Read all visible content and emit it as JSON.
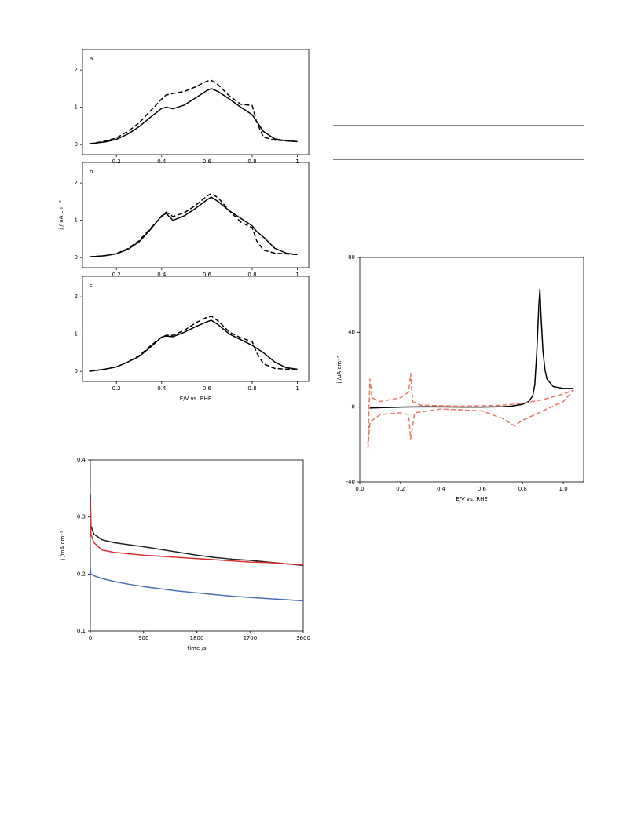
{
  "chart_data": [
    {
      "type": "line",
      "label": "a",
      "xlim": [
        0.05,
        1.05
      ],
      "ylim": [
        -0.27,
        2.55
      ],
      "xticks": [
        0.2,
        0.4,
        0.6,
        0.8,
        1.0
      ],
      "yticks": [
        0,
        1,
        2
      ],
      "series": [
        {
          "color": "#000000",
          "dash": false,
          "x": [
            0.08,
            0.15,
            0.2,
            0.25,
            0.3,
            0.35,
            0.4,
            0.42,
            0.45,
            0.5,
            0.55,
            0.6,
            0.62,
            0.65,
            0.7,
            0.75,
            0.8,
            0.82,
            0.85,
            0.9,
            0.95,
            1.0
          ],
          "values": [
            0.02,
            0.07,
            0.14,
            0.28,
            0.48,
            0.73,
            0.97,
            1.0,
            0.96,
            1.06,
            1.25,
            1.45,
            1.5,
            1.42,
            1.22,
            1.0,
            0.8,
            0.62,
            0.35,
            0.15,
            0.1,
            0.08
          ]
        },
        {
          "color": "#000000",
          "dash": true,
          "x": [
            0.08,
            0.15,
            0.2,
            0.25,
            0.3,
            0.35,
            0.4,
            0.42,
            0.45,
            0.5,
            0.55,
            0.6,
            0.62,
            0.65,
            0.7,
            0.75,
            0.8,
            0.82,
            0.85,
            0.9,
            0.95,
            1.0
          ],
          "values": [
            0.02,
            0.09,
            0.18,
            0.35,
            0.58,
            0.9,
            1.22,
            1.33,
            1.37,
            1.42,
            1.55,
            1.7,
            1.72,
            1.6,
            1.3,
            1.08,
            1.05,
            0.6,
            0.2,
            0.12,
            0.1,
            0.08
          ]
        }
      ]
    },
    {
      "type": "line",
      "label": "b",
      "y_label": "j /mA cm⁻²",
      "xlim": [
        0.05,
        1.05
      ],
      "ylim": [
        -0.27,
        2.55
      ],
      "xticks": [
        0.2,
        0.4,
        0.6,
        0.8,
        1.0
      ],
      "yticks": [
        0,
        1,
        2
      ],
      "series": [
        {
          "color": "#000000",
          "dash": false,
          "x": [
            0.08,
            0.15,
            0.2,
            0.25,
            0.3,
            0.35,
            0.4,
            0.42,
            0.45,
            0.5,
            0.55,
            0.6,
            0.62,
            0.65,
            0.7,
            0.75,
            0.8,
            0.82,
            0.85,
            0.9,
            0.95,
            1.0
          ],
          "values": [
            0.02,
            0.05,
            0.1,
            0.22,
            0.42,
            0.75,
            1.12,
            1.18,
            1.0,
            1.12,
            1.32,
            1.55,
            1.62,
            1.5,
            1.25,
            1.05,
            0.85,
            0.7,
            0.55,
            0.25,
            0.12,
            0.08
          ]
        },
        {
          "color": "#000000",
          "dash": true,
          "x": [
            0.08,
            0.15,
            0.2,
            0.25,
            0.3,
            0.35,
            0.4,
            0.42,
            0.45,
            0.5,
            0.55,
            0.6,
            0.62,
            0.65,
            0.7,
            0.75,
            0.8,
            0.82,
            0.85,
            0.9,
            0.95,
            1.0
          ],
          "values": [
            0.02,
            0.05,
            0.11,
            0.24,
            0.45,
            0.78,
            1.1,
            1.22,
            1.1,
            1.2,
            1.4,
            1.65,
            1.72,
            1.6,
            1.25,
            0.95,
            0.8,
            0.45,
            0.2,
            0.12,
            0.1,
            0.08
          ]
        }
      ]
    },
    {
      "type": "line",
      "label": "c",
      "x_label": "E/V vs. RHE",
      "xlim": [
        0.05,
        1.05
      ],
      "ylim": [
        -0.27,
        2.55
      ],
      "xticks": [
        0.2,
        0.4,
        0.6,
        0.8,
        1.0
      ],
      "yticks": [
        0,
        1,
        2
      ],
      "series": [
        {
          "color": "#000000",
          "dash": false,
          "x": [
            0.08,
            0.15,
            0.2,
            0.25,
            0.3,
            0.35,
            0.4,
            0.42,
            0.45,
            0.5,
            0.55,
            0.6,
            0.62,
            0.65,
            0.7,
            0.75,
            0.8,
            0.82,
            0.85,
            0.9,
            0.95,
            1.0
          ],
          "values": [
            0.0,
            0.06,
            0.12,
            0.25,
            0.4,
            0.65,
            0.92,
            0.95,
            0.93,
            1.05,
            1.2,
            1.33,
            1.37,
            1.25,
            1.0,
            0.85,
            0.7,
            0.62,
            0.5,
            0.25,
            0.1,
            0.06
          ]
        },
        {
          "color": "#000000",
          "dash": true,
          "x": [
            0.08,
            0.15,
            0.2,
            0.25,
            0.3,
            0.35,
            0.4,
            0.42,
            0.45,
            0.5,
            0.55,
            0.6,
            0.62,
            0.65,
            0.7,
            0.75,
            0.8,
            0.82,
            0.85,
            0.9,
            0.95,
            1.0
          ],
          "values": [
            0.0,
            0.06,
            0.12,
            0.25,
            0.42,
            0.68,
            0.92,
            0.97,
            0.97,
            1.1,
            1.3,
            1.45,
            1.48,
            1.35,
            1.05,
            0.9,
            0.8,
            0.5,
            0.2,
            0.08,
            0.06,
            0.06
          ]
        }
      ]
    },
    {
      "type": "line",
      "x_label": "time /s",
      "y_label": "j /mA cm⁻²",
      "xlim": [
        0,
        3600
      ],
      "ylim": [
        0.1,
        0.4
      ],
      "xticks": [
        0,
        900,
        1800,
        2700,
        3600
      ],
      "yticks": [
        0.1,
        0.2,
        0.3,
        0.4
      ],
      "series": [
        {
          "color": "#222222",
          "dash": false,
          "x": [
            0,
            10,
            60,
            200,
            400,
            600,
            900,
            1200,
            1500,
            1800,
            2100,
            2400,
            2700,
            3000,
            3300,
            3600
          ],
          "values": [
            0.34,
            0.285,
            0.27,
            0.26,
            0.255,
            0.252,
            0.248,
            0.243,
            0.238,
            0.233,
            0.229,
            0.226,
            0.224,
            0.221,
            0.218,
            0.215
          ]
        },
        {
          "color": "#d9312f",
          "dash": false,
          "x": [
            0,
            10,
            60,
            200,
            400,
            600,
            900,
            1200,
            1500,
            1800,
            2100,
            2400,
            2700,
            3000,
            3300,
            3600
          ],
          "values": [
            0.33,
            0.27,
            0.255,
            0.242,
            0.238,
            0.236,
            0.233,
            0.231,
            0.229,
            0.227,
            0.225,
            0.223,
            0.221,
            0.22,
            0.218,
            0.216
          ]
        },
        {
          "color": "#4a6fb5",
          "dash": false,
          "x": [
            0,
            10,
            60,
            200,
            400,
            600,
            900,
            1200,
            1500,
            1800,
            2100,
            2400,
            2700,
            3000,
            3300,
            3600
          ],
          "values": [
            0.21,
            0.2,
            0.197,
            0.192,
            0.187,
            0.183,
            0.178,
            0.174,
            0.17,
            0.167,
            0.164,
            0.161,
            0.159,
            0.157,
            0.155,
            0.153
          ]
        }
      ]
    },
    {
      "type": "line",
      "x_label": "E/V vs. RHE",
      "y_label": "j /μA cm⁻²",
      "xlim": [
        0,
        1.1
      ],
      "ylim": [
        -40,
        80
      ],
      "xticks": [
        {
          "value": 0,
          "label": "0.0"
        },
        0.2,
        0.4,
        0.6,
        0.8,
        {
          "value": 1,
          "label": "1.0"
        }
      ],
      "yticks": [
        -40,
        0,
        40,
        80
      ],
      "series": [
        {
          "color": "#000000",
          "dash": false,
          "x": [
            0.05,
            0.1,
            0.2,
            0.3,
            0.4,
            0.5,
            0.6,
            0.7,
            0.75,
            0.8,
            0.83,
            0.85,
            0.86,
            0.87,
            0.88,
            0.885,
            0.89,
            0.9,
            0.91,
            0.92,
            0.95,
            1.0,
            1.05
          ],
          "values": [
            -0.5,
            -0.3,
            0,
            0.2,
            0.1,
            0,
            0,
            0.2,
            0.6,
            1.5,
            3,
            6,
            12,
            30,
            55,
            63,
            50,
            30,
            20,
            15,
            11,
            10,
            10
          ]
        },
        {
          "color": "#e8776a",
          "dash": true,
          "x": [
            0.04,
            0.05,
            0.06,
            0.1,
            0.2,
            0.24,
            0.25,
            0.26,
            0.3,
            0.5,
            0.7,
            0.8,
            0.9,
            1.0,
            1.05,
            1.0,
            0.9,
            0.8,
            0.76,
            0.7,
            0.6,
            0.4,
            0.27,
            0.25,
            0.24,
            0.2,
            0.1,
            0.05,
            0.04
          ],
          "values": [
            -20,
            15,
            5,
            3,
            5,
            8,
            18,
            3,
            1,
            0.5,
            1,
            2,
            4,
            7,
            9,
            3,
            -2,
            -7,
            -10,
            -6,
            -2,
            -1,
            -3,
            -17,
            -4,
            -3,
            -4,
            -8,
            -22
          ]
        }
      ]
    }
  ]
}
